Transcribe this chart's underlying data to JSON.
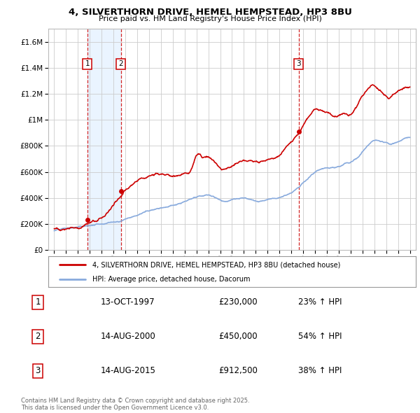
{
  "title": "4, SILVERTHORN DRIVE, HEMEL HEMPSTEAD, HP3 8BU",
  "subtitle": "Price paid vs. HM Land Registry's House Price Index (HPI)",
  "transactions": [
    {
      "date": 1997.79,
      "price": 230000,
      "label": "1",
      "date_str": "13-OCT-1997",
      "pct": "23%"
    },
    {
      "date": 2000.62,
      "price": 450000,
      "label": "2",
      "date_str": "14-AUG-2000",
      "pct": "54%"
    },
    {
      "date": 2015.62,
      "price": 912500,
      "label": "3",
      "date_str": "14-AUG-2015",
      "pct": "38%"
    }
  ],
  "legend_line1": "4, SILVERTHORN DRIVE, HEMEL HEMPSTEAD, HP3 8BU (detached house)",
  "legend_line2": "HPI: Average price, detached house, Dacorum",
  "footer_line1": "Contains HM Land Registry data © Crown copyright and database right 2025.",
  "footer_line2": "This data is licensed under the Open Government Licence v3.0.",
  "red_color": "#cc0000",
  "blue_color": "#88aadd",
  "vline_color": "#cc0000",
  "shade_color": "#ddeeff",
  "background_color": "#ffffff",
  "grid_color": "#cccccc",
  "ylim": [
    0,
    1700000
  ],
  "xlim": [
    1994.5,
    2025.5
  ],
  "hpi_data_x": [
    1995.0,
    1995.5,
    1996.0,
    1996.5,
    1997.0,
    1997.5,
    1997.79,
    1998.0,
    1998.5,
    1999.0,
    1999.5,
    2000.0,
    2000.62,
    2001.0,
    2001.5,
    2002.0,
    2002.5,
    2003.0,
    2003.5,
    2004.0,
    2004.5,
    2005.0,
    2005.5,
    2006.0,
    2006.5,
    2007.0,
    2007.5,
    2008.0,
    2008.5,
    2009.0,
    2009.5,
    2010.0,
    2010.5,
    2011.0,
    2011.5,
    2012.0,
    2012.5,
    2013.0,
    2013.5,
    2014.0,
    2014.5,
    2015.0,
    2015.5,
    2015.62,
    2016.0,
    2016.5,
    2017.0,
    2017.5,
    2018.0,
    2018.5,
    2019.0,
    2019.5,
    2020.0,
    2020.5,
    2021.0,
    2021.5,
    2022.0,
    2022.5,
    2023.0,
    2023.5,
    2024.0,
    2024.5,
    2025.0
  ],
  "hpi_data_y": [
    148000,
    152000,
    156000,
    160000,
    165000,
    170000,
    173000,
    176000,
    185000,
    196000,
    208000,
    220000,
    232000,
    248000,
    265000,
    280000,
    300000,
    318000,
    335000,
    350000,
    362000,
    372000,
    382000,
    395000,
    408000,
    418000,
    425000,
    430000,
    415000,
    395000,
    390000,
    400000,
    405000,
    405000,
    400000,
    395000,
    395000,
    405000,
    415000,
    430000,
    455000,
    480000,
    515000,
    522000,
    565000,
    600000,
    640000,
    660000,
    670000,
    665000,
    675000,
    690000,
    700000,
    730000,
    775000,
    830000,
    870000,
    860000,
    840000,
    830000,
    840000,
    855000,
    870000
  ],
  "prop_data_x": [
    1995.0,
    1995.5,
    1996.0,
    1996.5,
    1997.0,
    1997.5,
    1997.79,
    1998.0,
    1998.5,
    1999.0,
    1999.5,
    2000.0,
    2000.62,
    2001.0,
    2001.5,
    2002.0,
    2002.5,
    2003.0,
    2003.5,
    2004.0,
    2004.5,
    2005.0,
    2005.5,
    2006.0,
    2006.5,
    2007.0,
    2007.5,
    2008.0,
    2008.5,
    2009.0,
    2009.5,
    2010.0,
    2010.5,
    2011.0,
    2011.5,
    2012.0,
    2012.5,
    2013.0,
    2013.5,
    2014.0,
    2014.5,
    2015.0,
    2015.5,
    2015.62,
    2016.0,
    2016.5,
    2017.0,
    2017.5,
    2018.0,
    2018.5,
    2019.0,
    2019.5,
    2020.0,
    2020.5,
    2021.0,
    2021.5,
    2022.0,
    2022.5,
    2023.0,
    2023.5,
    2024.0,
    2024.5,
    2025.0
  ],
  "prop_data_y": [
    162000,
    165000,
    170000,
    178000,
    188000,
    210000,
    230000,
    245000,
    268000,
    295000,
    330000,
    390000,
    450000,
    490000,
    530000,
    570000,
    600000,
    630000,
    650000,
    660000,
    655000,
    648000,
    640000,
    660000,
    680000,
    800000,
    790000,
    775000,
    730000,
    670000,
    660000,
    680000,
    695000,
    700000,
    690000,
    685000,
    690000,
    710000,
    730000,
    760000,
    800000,
    850000,
    900000,
    912500,
    980000,
    1040000,
    1090000,
    1060000,
    1050000,
    1020000,
    1030000,
    1060000,
    1060000,
    1120000,
    1190000,
    1260000,
    1280000,
    1240000,
    1210000,
    1220000,
    1250000,
    1270000,
    1290000
  ]
}
